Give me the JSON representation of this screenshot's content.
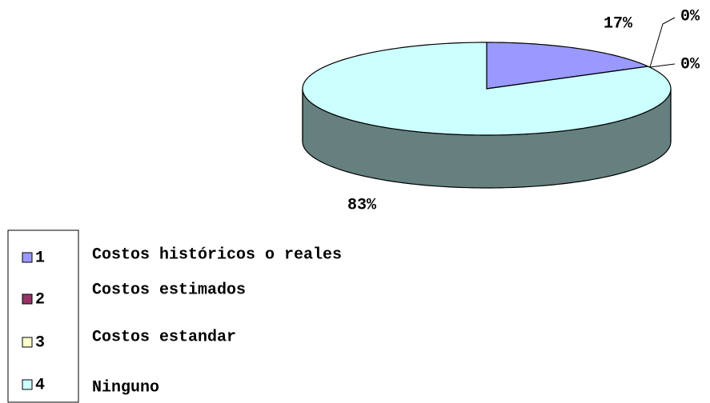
{
  "chart_data": {
    "type": "pie",
    "categories": [
      "1",
      "2",
      "3",
      "4"
    ],
    "legend_labels": [
      "Costos históricos o reales",
      "Costos estimados",
      "Costos estandar",
      "Ninguno"
    ],
    "values": [
      17,
      0,
      0,
      83
    ],
    "value_labels": [
      "17%",
      "0%",
      "0%",
      "83%"
    ],
    "colors": [
      "#9999ff",
      "#993366",
      "#ffffcc",
      "#ccffff"
    ],
    "legend": "bottom-left"
  }
}
